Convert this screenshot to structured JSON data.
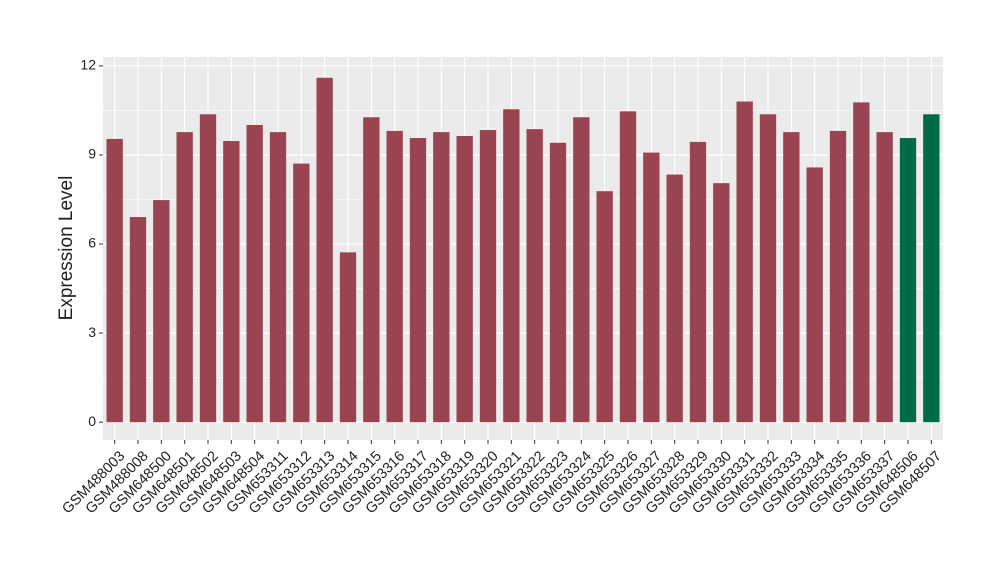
{
  "chart_data": {
    "type": "bar",
    "y_label": "Expression Level",
    "categories": [
      "GSM488003",
      "GSM488008",
      "GSM648500",
      "GSM648501",
      "GSM648502",
      "GSM648503",
      "GSM648504",
      "GSM653311",
      "GSM653312",
      "GSM653313",
      "GSM653314",
      "GSM653315",
      "GSM653316",
      "GSM653317",
      "GSM653318",
      "GSM653319",
      "GSM653320",
      "GSM653321",
      "GSM653322",
      "GSM653323",
      "GSM653324",
      "GSM653325",
      "GSM653326",
      "GSM653327",
      "GSM653328",
      "GSM653329",
      "GSM653330",
      "GSM653331",
      "GSM653332",
      "GSM653333",
      "GSM653334",
      "GSM653335",
      "GSM653336",
      "GSM653337",
      "GSM648506",
      "GSM648507"
    ],
    "values": [
      9.54,
      6.91,
      7.48,
      9.77,
      10.37,
      9.47,
      10.01,
      9.77,
      8.71,
      11.6,
      5.72,
      10.27,
      9.81,
      9.57,
      9.77,
      9.64,
      9.84,
      10.54,
      9.87,
      9.41,
      10.27,
      7.78,
      10.47,
      9.08,
      8.34,
      9.44,
      8.05,
      10.8,
      10.37,
      9.77,
      8.58,
      9.81,
      10.77,
      9.77,
      9.57,
      10.37
    ],
    "colors": [
      "#9a4351",
      "#9a4351",
      "#9a4351",
      "#9a4351",
      "#9a4351",
      "#9a4351",
      "#9a4351",
      "#9a4351",
      "#9a4351",
      "#9a4351",
      "#9a4351",
      "#9a4351",
      "#9a4351",
      "#9a4351",
      "#9a4351",
      "#9a4351",
      "#9a4351",
      "#9a4351",
      "#9a4351",
      "#9a4351",
      "#9a4351",
      "#9a4351",
      "#9a4351",
      "#9a4351",
      "#9a4351",
      "#9a4351",
      "#9a4351",
      "#9a4351",
      "#9a4351",
      "#9a4351",
      "#9a4351",
      "#9a4351",
      "#9a4351",
      "#9a4351",
      "#006b45",
      "#006b45"
    ],
    "ylim": [
      -0.6,
      12.3
    ],
    "yticks": [
      0,
      3,
      6,
      9,
      12
    ],
    "grid": true
  }
}
